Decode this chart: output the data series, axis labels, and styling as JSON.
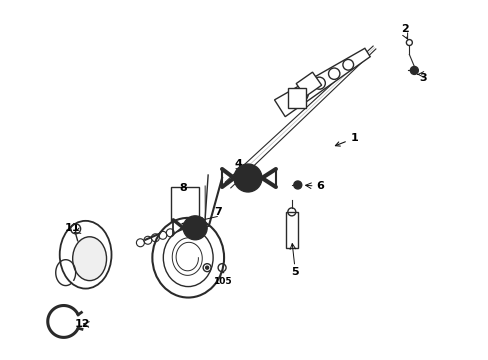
{
  "background_color": "#ffffff",
  "figsize": [
    4.89,
    3.6
  ],
  "dpi": 100,
  "line_color": "#2a2a2a",
  "arrow_color": "#111111",
  "label_fontsize": 7.5
}
